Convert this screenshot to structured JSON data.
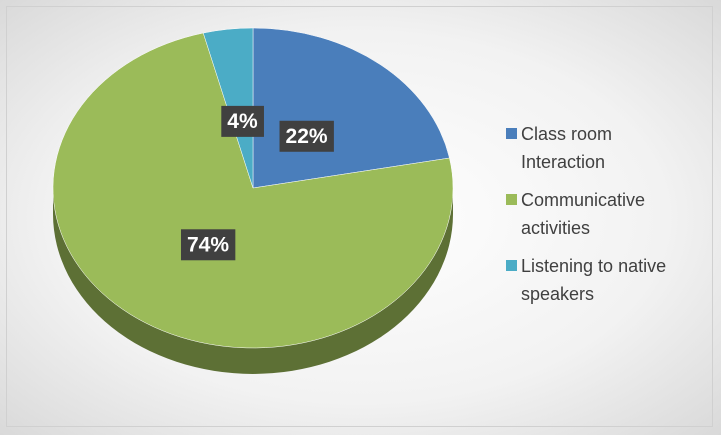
{
  "chart_data": {
    "type": "pie",
    "categories": [
      "Class room Interaction",
      "Communicative activities",
      "Listening to native speakers"
    ],
    "values": [
      22,
      74,
      4
    ],
    "value_labels": [
      "22%",
      "74%",
      "4%"
    ],
    "colors": [
      "#4a7ebb",
      "#9bbb59",
      "#4bacc6"
    ],
    "legend": "right"
  }
}
